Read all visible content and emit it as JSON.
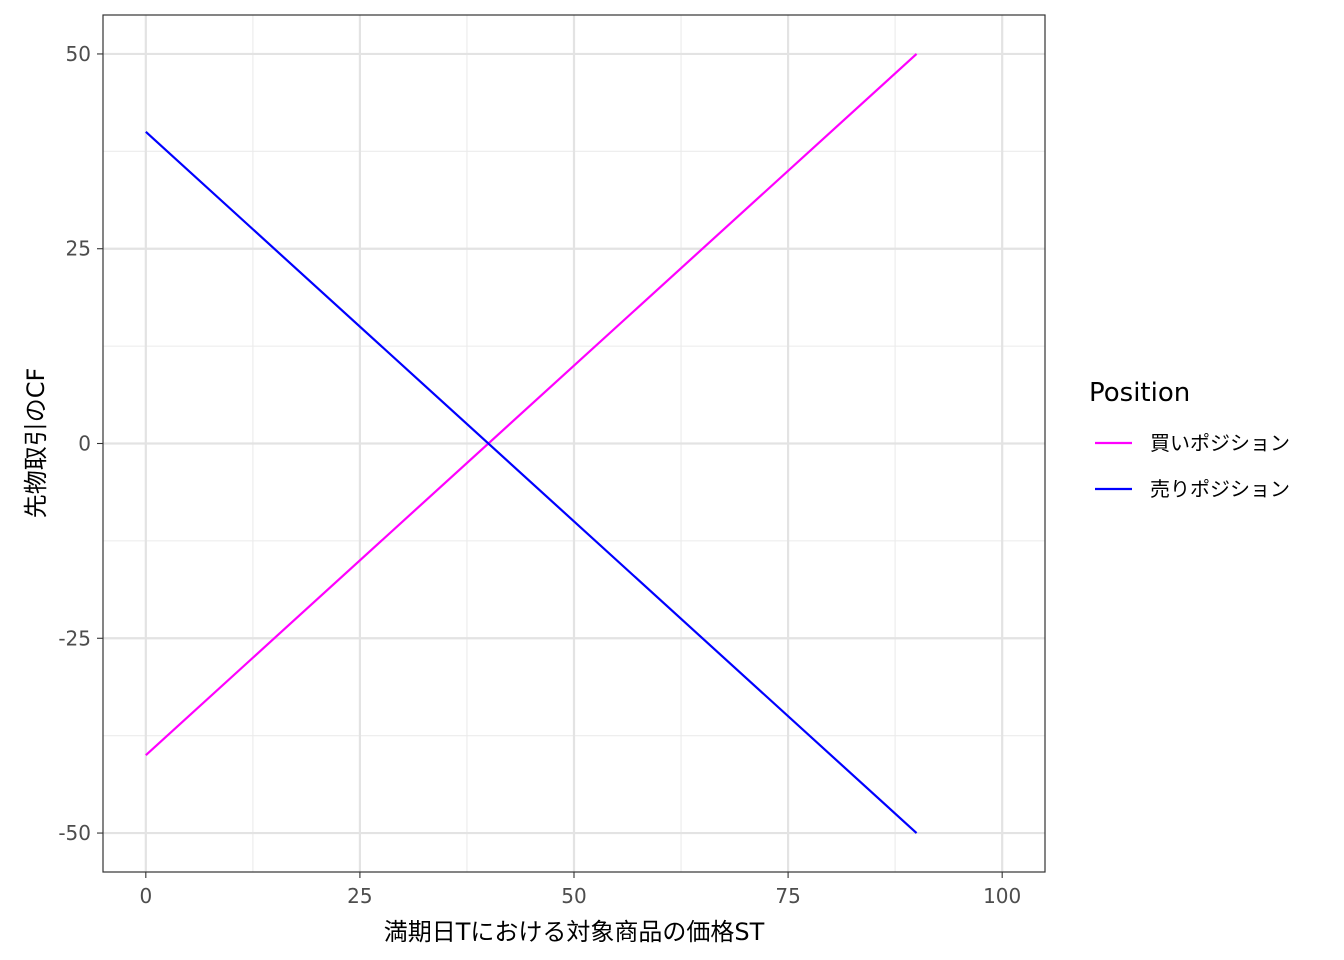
{
  "chart_data": {
    "type": "line",
    "title": "",
    "xlabel": "満期日Tにおける対象商品の価格ST",
    "ylabel": "先物取引のCF",
    "xlim": [
      -5,
      105
    ],
    "ylim": [
      -55,
      55
    ],
    "x_ticks": [
      0,
      25,
      50,
      75,
      100
    ],
    "y_ticks": [
      -50,
      -25,
      0,
      25,
      50
    ],
    "x_minor_ticks": [
      12.5,
      37.5,
      62.5,
      87.5
    ],
    "y_minor_ticks": [
      -37.5,
      -12.5,
      12.5,
      37.5
    ],
    "grid": true,
    "legend": {
      "title": "Position",
      "placement": "right"
    },
    "series": [
      {
        "name": "買いポジション",
        "color": "#ff00ff",
        "x": [
          0,
          90
        ],
        "y": [
          -40,
          50
        ]
      },
      {
        "name": "売りポジション",
        "color": "#0000ff",
        "x": [
          0,
          90
        ],
        "y": [
          40,
          -50
        ]
      }
    ]
  }
}
